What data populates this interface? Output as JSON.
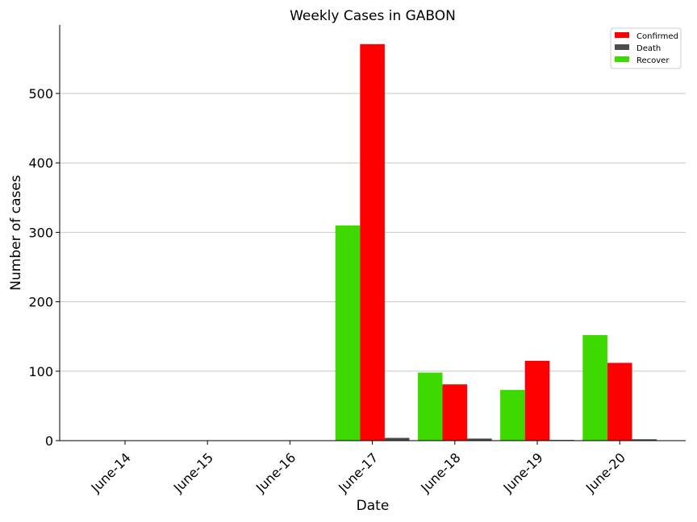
{
  "chart_data": {
    "type": "bar",
    "title": "Weekly Cases in GABON",
    "xlabel": "Date",
    "ylabel": "Number of cases",
    "categories": [
      "June-14",
      "June-15",
      "June-16",
      "June-17",
      "June-18",
      "June-19",
      "June-20"
    ],
    "series": [
      {
        "name": "Recover",
        "color": "#3dd900",
        "values": [
          0,
          0,
          0,
          310,
          98,
          73,
          152
        ]
      },
      {
        "name": "Confirmed",
        "color": "#ff0000",
        "values": [
          0,
          0,
          0,
          571,
          81,
          115,
          112
        ]
      },
      {
        "name": "Death",
        "color": "#4d4d4d",
        "values": [
          0,
          0,
          0,
          4,
          3,
          1,
          2
        ]
      }
    ],
    "legend_order": [
      "Confirmed",
      "Death",
      "Recover"
    ],
    "legend_position": "top-right",
    "ylim": [
      0,
      600
    ],
    "yticks": [
      0,
      100,
      200,
      300,
      400,
      500
    ],
    "grid": "horizontal"
  }
}
